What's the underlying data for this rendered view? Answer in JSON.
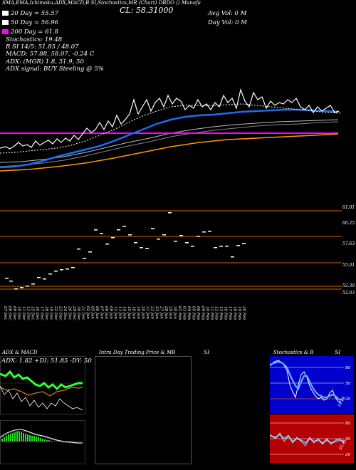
{
  "header": {
    "top_line": "SMA,EMA,Ichimoku,ADX,MACD,B   SI,Stochastics,MR   (Chart)   DRDO   () Munafa",
    "close_label": "CL: 58.31000",
    "legend": [
      {
        "label": "20 Day = 55.57",
        "color": "#ffffff"
      },
      {
        "label": "50 Day = 56.96",
        "color": "#ffffff"
      },
      {
        "label": "200 Day = 61.8",
        "color": "#ff00ff"
      }
    ],
    "avg_vol": "Avg Vol: 0   M",
    "day_vol": "Day Vol: 0   M",
    "stochastics": "Stochastics: 19.48",
    "rsi_line": "R         SI 14/5: 51.85 / 48.07",
    "macd_line": "MACD: 57.88, 58.07, -0.24  C",
    "adx_line": "ADX:                              (MGR) 1.8, 51.9,   50",
    "adx_signal": "ADX  signal:                                         BUY Steeling @ 5%"
  },
  "price_scale": {
    "labels": [
      "61.81",
      "60.25",
      "57.63",
      "55.01",
      "52.39",
      "52.03"
    ]
  },
  "dates": [
    "07 Dec",
    "08 Dec",
    "09 Dec",
    "10 Dec",
    "11 Dec",
    "12 Dec",
    "15 Dec",
    "16 Dec",
    "17 Dec",
    "18 Dec",
    "19 Dec",
    "22 Dec",
    "23 Dec",
    "24 Dec",
    "26 Dec",
    "29 Dec",
    "30 Dec",
    "31 Dec",
    "02 Jan",
    "05 Jan",
    "06 Jan",
    "07 Jan",
    "08 Jan",
    "09 Jan",
    "12 Jan",
    "13 Jan",
    "14 Jan",
    "15 Jan",
    "16 Jan",
    "19 Jan",
    "20 Jan",
    "21 Jan",
    "22 Jan",
    "23 Jan",
    "27 Jan",
    "28 Jan",
    "29 Jan",
    "30 Jan",
    "02 Feb",
    "03 Feb",
    "04 Feb",
    "05 Feb",
    "06 Feb",
    "09 Feb",
    "10 Feb",
    "11 Feb",
    "12 Feb",
    "13 Feb",
    "16 Feb",
    "17 Feb",
    "18 Feb",
    "19 Feb",
    "20 Feb"
  ],
  "panels": {
    "adx": {
      "title": "ADX  & MACD",
      "readout": "ADX: 1.82  +DI: 51.85 -DY: 50"
    },
    "intraday": {
      "title": "Intra  Day Trading Price  & MR",
      "title_suffix": "SI"
    },
    "stoch": {
      "title": "Stochastics & R",
      "title_suffix": "SI",
      "scale_top": [
        "80",
        "50",
        "20"
      ],
      "scale_bottom": [
        "80",
        "50",
        "20"
      ],
      "value_label": "19.48",
      "rsi_label": "51.85"
    }
  },
  "colors": {
    "ma_blue": "#1e6cf0",
    "ma_magenta": "#ff00ff",
    "ma_orange": "#ff9900",
    "adx_green": "#33ff33",
    "macd_orange": "#cc7a1f",
    "stoch_panel_bg": "#0000cc",
    "rsi_panel_bg": "#b30000",
    "level_line": "#cc6600"
  }
}
